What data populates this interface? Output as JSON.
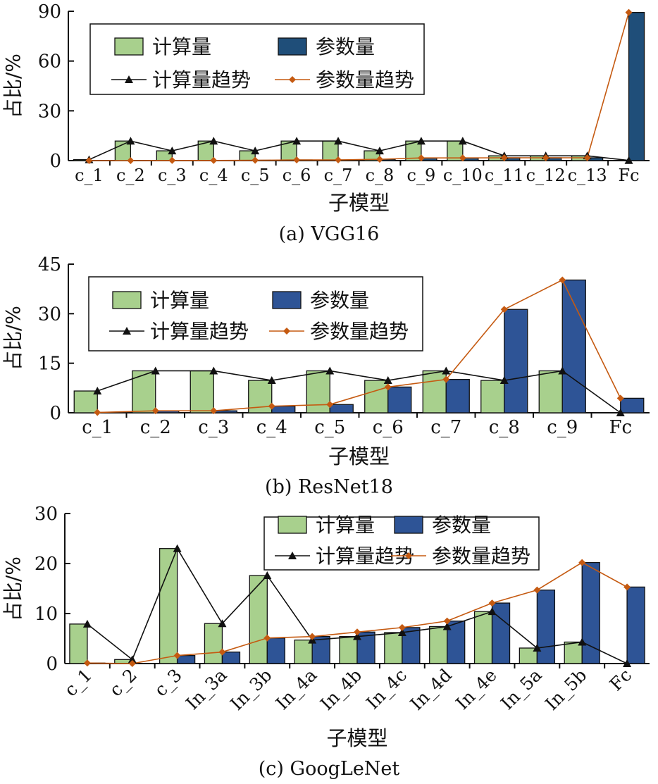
{
  "colors": {
    "compute_bar": "#a8d08d",
    "param_bar_a": "#1f4e79",
    "param_bar": "#2e5496",
    "compute_trend": "#111111",
    "param_trend": "#c55a11"
  },
  "chart_data": [
    {
      "type": "bar",
      "caption": "(a) VGG16",
      "xlabel": "子模型",
      "ylabel": "占比/%",
      "ylim": [
        0,
        90
      ],
      "yticks": [
        0,
        30,
        60,
        90
      ],
      "categories": [
        "c_1",
        "c_2",
        "c_3",
        "c_4",
        "c_5",
        "c_6",
        "c_7",
        "c_8",
        "c_9",
        "c_10",
        "c_11",
        "c_12",
        "c_13",
        "Fc"
      ],
      "legend": {
        "items": [
          "计算量",
          "参数量",
          "计算量趋势",
          "参数量趋势"
        ],
        "placement": "top-left"
      },
      "series": [
        {
          "name": "计算量",
          "kind": "bar",
          "values": [
            0.6,
            11.8,
            5.9,
            11.8,
            5.9,
            11.8,
            11.8,
            5.9,
            11.8,
            11.8,
            2.9,
            2.9,
            2.9,
            0.1
          ]
        },
        {
          "name": "参数量",
          "kind": "bar",
          "values": [
            0.0,
            0.0,
            0.1,
            0.1,
            0.2,
            0.4,
            0.4,
            0.8,
            1.6,
            1.6,
            1.7,
            1.7,
            1.7,
            89.3
          ]
        },
        {
          "name": "计算量趋势",
          "kind": "line",
          "values": [
            0.6,
            11.8,
            5.9,
            11.8,
            5.9,
            11.8,
            11.8,
            5.9,
            11.8,
            11.8,
            2.9,
            2.9,
            2.9,
            0.1
          ]
        },
        {
          "name": "参数量趋势",
          "kind": "line",
          "values": [
            0.0,
            0.0,
            0.1,
            0.1,
            0.2,
            0.4,
            0.4,
            0.8,
            1.6,
            1.6,
            1.7,
            1.7,
            1.7,
            89.3
          ]
        }
      ]
    },
    {
      "type": "bar",
      "caption": "(b) ResNet18",
      "xlabel": "子模型",
      "ylabel": "占比/%",
      "ylim": [
        0,
        45
      ],
      "yticks": [
        0,
        15,
        30,
        45
      ],
      "categories": [
        "c_1",
        "c_2",
        "c_3",
        "c_4",
        "c_5",
        "c_6",
        "c_7",
        "c_8",
        "c_9",
        "Fc"
      ],
      "legend": {
        "items": [
          "计算量",
          "参数量",
          "计算量趋势",
          "参数量趋势"
        ],
        "placement": "top-left"
      },
      "series": [
        {
          "name": "计算量",
          "kind": "bar",
          "values": [
            6.6,
            12.7,
            12.7,
            9.8,
            12.7,
            9.8,
            12.7,
            9.8,
            12.7,
            0.0
          ]
        },
        {
          "name": "参数量",
          "kind": "bar",
          "values": [
            0.1,
            0.6,
            0.6,
            2.0,
            2.5,
            7.8,
            10.1,
            31.3,
            40.2,
            4.4
          ]
        },
        {
          "name": "计算量趋势",
          "kind": "line",
          "values": [
            6.6,
            12.7,
            12.7,
            9.8,
            12.7,
            9.8,
            12.7,
            9.8,
            12.7,
            0.0
          ]
        },
        {
          "name": "参数量趋势",
          "kind": "line",
          "values": [
            0.1,
            0.6,
            0.6,
            2.0,
            2.5,
            7.8,
            10.1,
            31.3,
            40.2,
            4.4
          ]
        }
      ]
    },
    {
      "type": "bar",
      "caption": "(c) GoogLeNet",
      "xlabel": "子模型",
      "ylabel": "占比/%",
      "ylim": [
        0,
        30
      ],
      "yticks": [
        0,
        10,
        20,
        30
      ],
      "categories": [
        "c_1",
        "c_2",
        "c_3",
        "In_3a",
        "In_3b",
        "In_4a",
        "In_4b",
        "In_4c",
        "In_4d",
        "In_4e",
        "In_5a",
        "In_5b",
        "Fc"
      ],
      "legend": {
        "items": [
          "计算量",
          "计算量趋势",
          "参数量",
          "参数量趋势"
        ],
        "placement": "top-right"
      },
      "series": [
        {
          "name": "计算量",
          "kind": "bar",
          "values": [
            7.9,
            0.8,
            23.0,
            8.0,
            17.6,
            4.7,
            5.4,
            6.2,
            7.4,
            10.4,
            3.1,
            4.3,
            0.0
          ]
        },
        {
          "name": "参数量",
          "kind": "bar",
          "values": [
            0.1,
            0.0,
            1.6,
            2.3,
            5.1,
            5.4,
            6.3,
            7.2,
            8.5,
            12.1,
            14.7,
            20.2,
            15.3
          ]
        },
        {
          "name": "计算量趋势",
          "kind": "line",
          "values": [
            7.9,
            0.8,
            23.0,
            8.0,
            17.6,
            4.7,
            5.4,
            6.2,
            7.4,
            10.4,
            3.1,
            4.3,
            0.0
          ]
        },
        {
          "name": "参数量趋势",
          "kind": "line",
          "values": [
            0.1,
            0.0,
            1.6,
            2.3,
            5.1,
            5.4,
            6.3,
            7.2,
            8.5,
            12.1,
            14.7,
            20.2,
            15.3
          ]
        }
      ]
    }
  ]
}
